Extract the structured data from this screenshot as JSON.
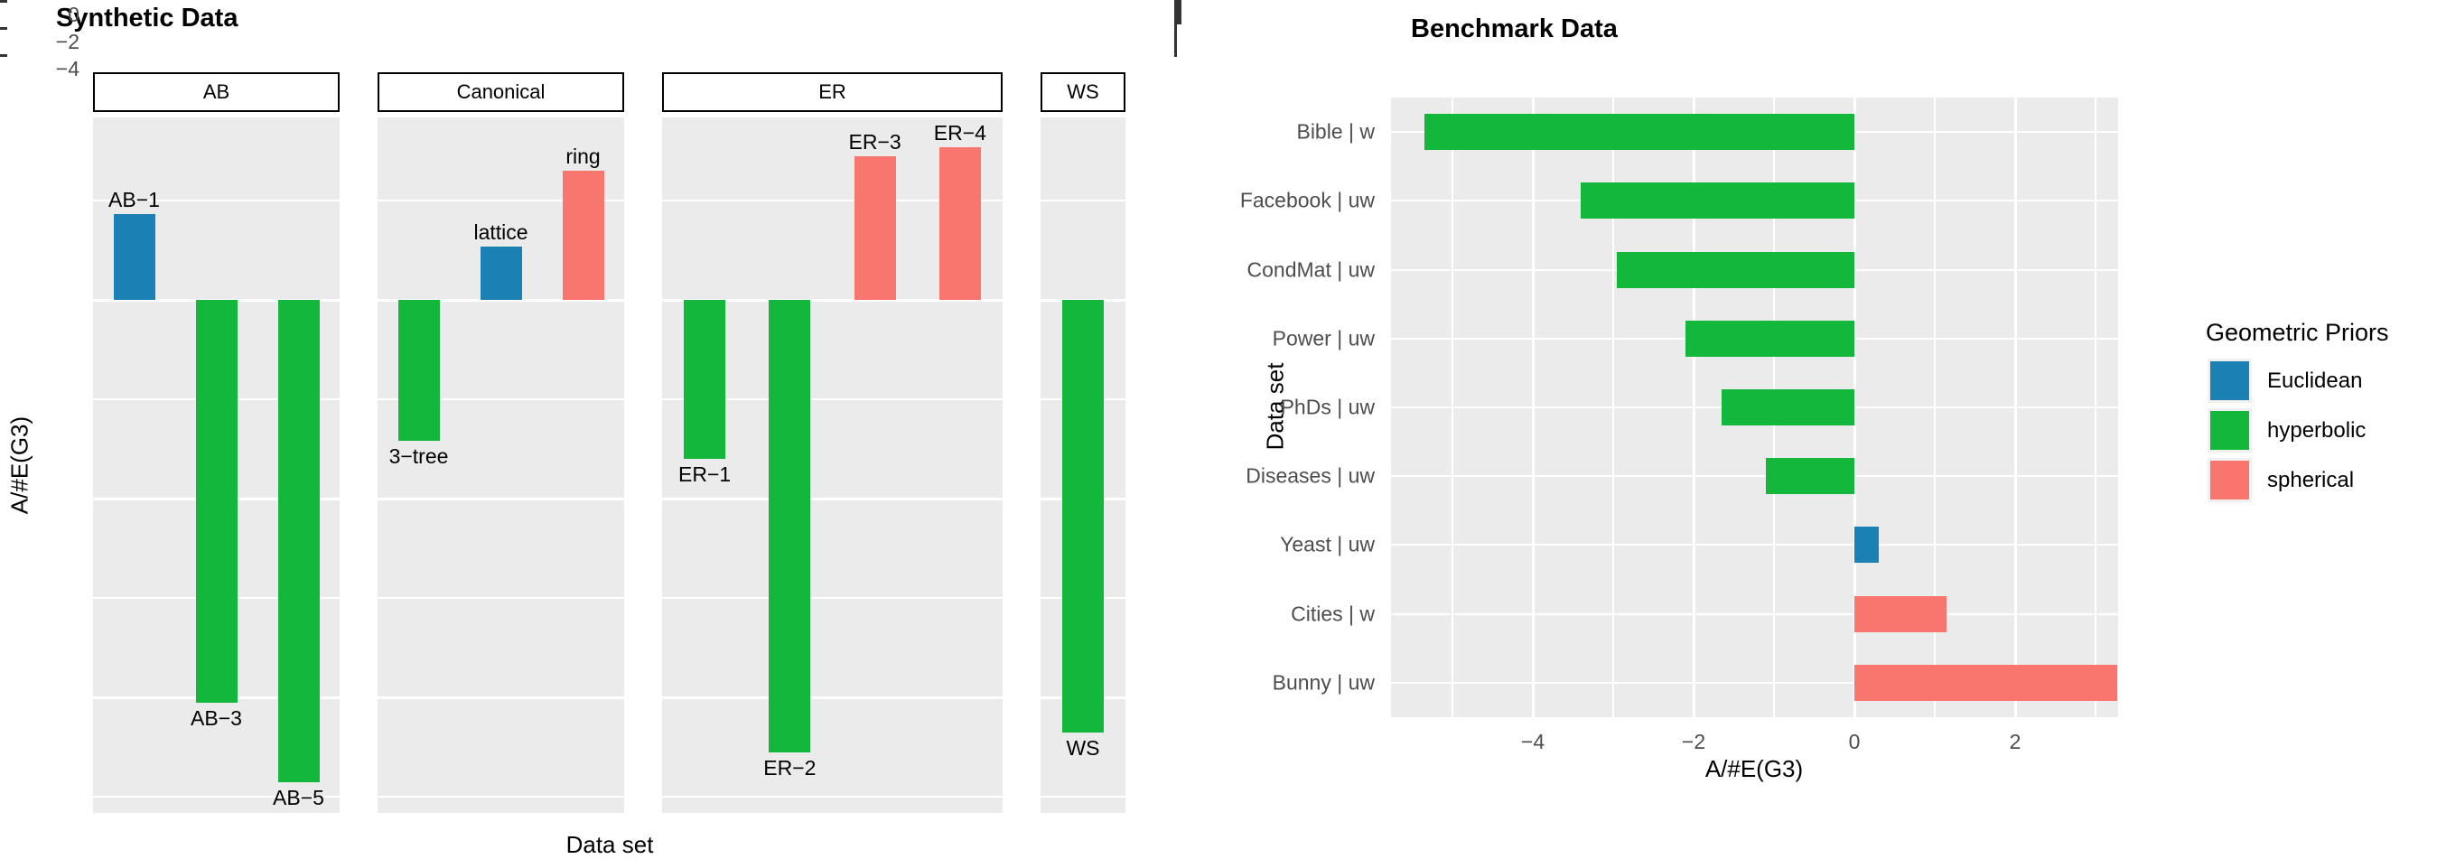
{
  "figure": {
    "background": "#ffffff"
  },
  "colors": {
    "euclidean": "#1b80b4",
    "hyperbolic": "#12b73c",
    "spherical": "#f8766d",
    "panel_background": "#ebebeb",
    "gridline": "#ffffff",
    "tick_text": "#4d4d4d",
    "text": "#000000",
    "strip_background": "#ffffff",
    "strip_border": "#000000"
  },
  "legend": {
    "title": "Geometric Priors",
    "position": "right",
    "items": [
      {
        "label": "Euclidean",
        "prior": "euclidean"
      },
      {
        "label": "hyperbolic",
        "prior": "hyperbolic"
      },
      {
        "label": "spherical",
        "prior": "spherical"
      }
    ]
  },
  "chart_data": [
    {
      "id": "synthetic",
      "type": "bar",
      "orientation": "vertical",
      "title": "Synthetic Data",
      "xlabel": "Data set",
      "ylabel": "A/#E(G3)",
      "grid": true,
      "ylim": [
        -5.16,
        1.84
      ],
      "y_ticks": [
        {
          "label": "0",
          "value": 0
        },
        {
          "label": "−2",
          "value": -2
        },
        {
          "label": "−4",
          "value": -4
        }
      ],
      "y_minor": [
        1,
        -1,
        -3,
        -5
      ],
      "facets": [
        {
          "label": "AB",
          "bars": [
            {
              "label": "AB−1",
              "value": 0.86,
              "prior": "euclidean"
            },
            {
              "label": "AB−3",
              "value": -4.05,
              "prior": "hyperbolic"
            },
            {
              "label": "AB−5",
              "value": -4.85,
              "prior": "hyperbolic"
            }
          ]
        },
        {
          "label": "Canonical",
          "bars": [
            {
              "label": "3−tree",
              "value": -1.42,
              "prior": "hyperbolic"
            },
            {
              "label": "lattice",
              "value": 0.54,
              "prior": "euclidean"
            },
            {
              "label": "ring",
              "value": 1.3,
              "prior": "spherical"
            }
          ]
        },
        {
          "label": "ER",
          "bars": [
            {
              "label": "ER−1",
              "value": -1.6,
              "prior": "hyperbolic"
            },
            {
              "label": "ER−2",
              "value": -4.55,
              "prior": "hyperbolic"
            },
            {
              "label": "ER−3",
              "value": 1.45,
              "prior": "spherical"
            },
            {
              "label": "ER−4",
              "value": 1.54,
              "prior": "spherical"
            }
          ]
        },
        {
          "label": "WS",
          "bars": [
            {
              "label": "WS",
              "value": -4.35,
              "prior": "hyperbolic"
            }
          ]
        }
      ]
    },
    {
      "id": "benchmark",
      "type": "bar",
      "orientation": "horizontal",
      "title": "Benchmark Data",
      "xlabel": "A/#E(G3)",
      "ylabel": "Data set",
      "grid": true,
      "xlim": [
        -5.76,
        3.28
      ],
      "x_ticks": [
        {
          "label": "−4",
          "value": -4
        },
        {
          "label": "−2",
          "value": -2
        },
        {
          "label": "0",
          "value": 0
        },
        {
          "label": "2",
          "value": 2
        }
      ],
      "x_minor": [
        -5,
        -3,
        -1,
        1,
        3
      ],
      "categories": [
        "Bible | w",
        "Facebook | uw",
        "CondMat | uw",
        "Power | uw",
        "PhDs | uw",
        "Diseases | uw",
        "Yeast | uw",
        "Cities | w",
        "Bunny | uw"
      ],
      "values": [
        -5.35,
        -3.4,
        -2.95,
        -2.1,
        -1.65,
        -1.1,
        0.3,
        1.15,
        3.27
      ],
      "priors": [
        "hyperbolic",
        "hyperbolic",
        "hyperbolic",
        "hyperbolic",
        "hyperbolic",
        "hyperbolic",
        "euclidean",
        "spherical",
        "spherical"
      ]
    }
  ]
}
